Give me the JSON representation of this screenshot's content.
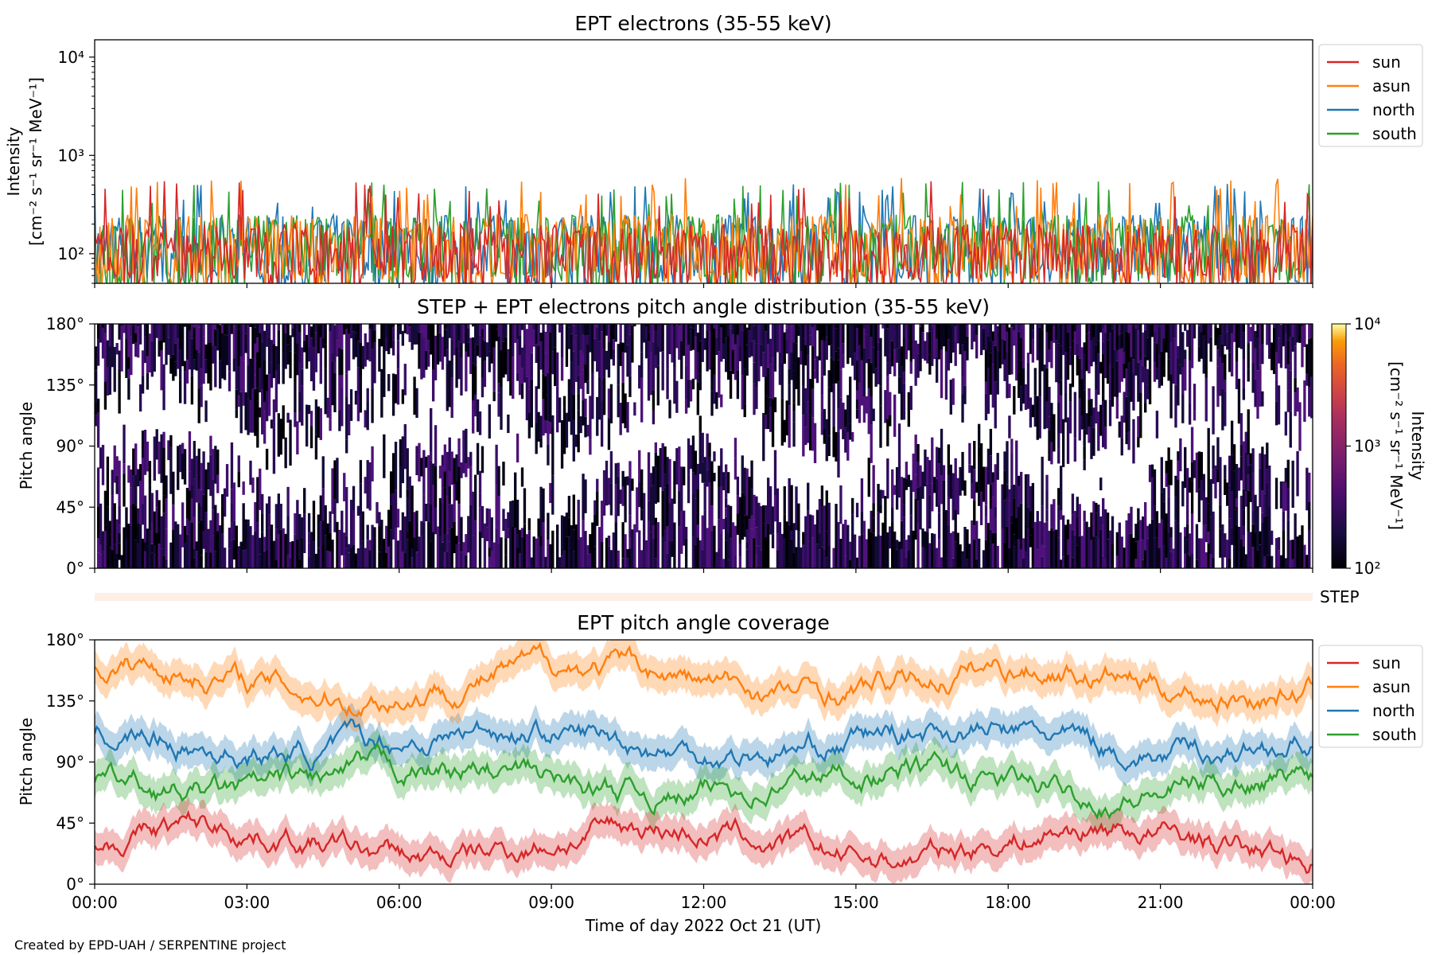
{
  "credit": "Created by EPD-UAH / SERPENTINE project",
  "xlabel": "Time of day 2022 Oct 21 (UT)",
  "x_ticks": [
    "00:00",
    "03:00",
    "06:00",
    "09:00",
    "12:00",
    "15:00",
    "18:00",
    "21:00",
    "00:00"
  ],
  "colors": {
    "sun": "#d62728",
    "asun": "#ff7f0e",
    "north": "#1f77b4",
    "south": "#2ca02c"
  },
  "chart_data": [
    {
      "type": "line",
      "title": "EPT electrons (35-55 keV)",
      "ylabel_line1": "Intensity",
      "ylabel_line2": "[cm⁻² s⁻¹ sr⁻¹ MeV⁻¹]",
      "yscale": "log",
      "ylim": [
        50,
        15000
      ],
      "y_ticks": [
        "10²",
        "10³",
        "10⁴"
      ],
      "x_range_hours": [
        0,
        24
      ],
      "legend": "right",
      "series": [
        {
          "name": "sun",
          "baseline_range": [
            60,
            200
          ],
          "peak_range": [
            300,
            550
          ]
        },
        {
          "name": "asun",
          "baseline_range": [
            60,
            250
          ],
          "peak_range": [
            300,
            600
          ]
        },
        {
          "name": "north",
          "baseline_range": [
            60,
            250
          ],
          "peak_range": [
            300,
            520
          ]
        },
        {
          "name": "south",
          "baseline_range": [
            60,
            250
          ],
          "peak_range": [
            300,
            560
          ]
        }
      ]
    },
    {
      "type": "heatmap",
      "title": "STEP + EPT electrons pitch angle distribution (35-55 keV)",
      "ylabel": "Pitch angle",
      "ylim": [
        0,
        180
      ],
      "y_ticks": [
        "0°",
        "45°",
        "90°",
        "135°",
        "180°"
      ],
      "colorbar": {
        "label_line1": "Intensity",
        "label_line2": "[cm⁻² s⁻¹ sr⁻¹ MeV⁻¹]",
        "scale": "log",
        "range": [
          100,
          10000
        ],
        "ticks": [
          "10²",
          "10³",
          "10⁴"
        ]
      },
      "note": "mostly dark values near 10² with gaps"
    },
    {
      "type": "bar",
      "label": "STEP",
      "color": "#fdeee6"
    },
    {
      "type": "line",
      "title": "EPT pitch angle coverage",
      "ylabel": "Pitch angle",
      "ylim": [
        0,
        180
      ],
      "y_ticks": [
        "0°",
        "45°",
        "90°",
        "135°",
        "180°"
      ],
      "x_range_hours": [
        0,
        24
      ],
      "legend": "right",
      "series": [
        {
          "name": "sun",
          "mean_pitch_angle": 30,
          "spread": 20
        },
        {
          "name": "asun",
          "mean_pitch_angle": 150,
          "spread": 18
        },
        {
          "name": "north",
          "mean_pitch_angle": 105,
          "spread": 15
        },
        {
          "name": "south",
          "mean_pitch_angle": 75,
          "spread": 15
        }
      ]
    }
  ]
}
